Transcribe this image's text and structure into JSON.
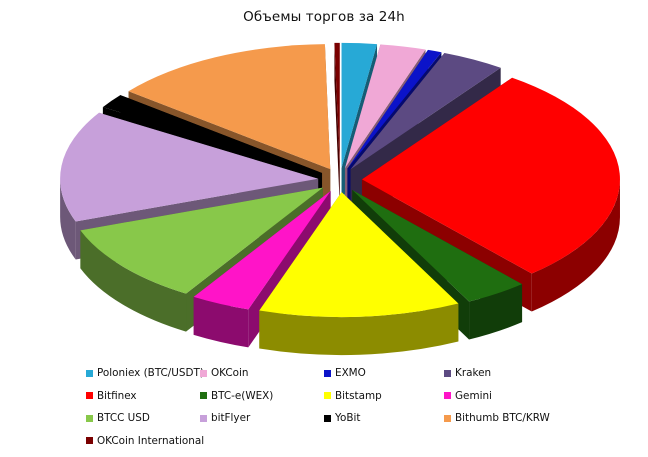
{
  "chart_data": {
    "type": "pie",
    "title": "Объемы торгов за 24h",
    "style": "exploded 3D pie",
    "categories": [
      "Poloniex (BTC/USDT)",
      "OKCoin",
      "EXMO",
      "Kraken",
      "Bitfinex",
      "BTC-e(WEX)",
      "Bitstamp",
      "Gemini",
      "BTCC USD",
      "bitFlyer",
      "YoBit",
      "Bithumb BTC/KRW",
      "OKCoin  International"
    ],
    "values": [
      2.0,
      2.6,
      0.8,
      3.6,
      26.1,
      3.6,
      11.5,
      3.4,
      9.6,
      13.1,
      1.7,
      12.7,
      0.3
    ],
    "colors": [
      "#27a9d6",
      "#f0a8d6",
      "#0b13c9",
      "#5c4a82",
      "#ff0000",
      "#1f6e10",
      "#ffff00",
      "#ff14c8",
      "#88c84a",
      "#c7a0da",
      "#000000",
      "#f59a4c",
      "#7a0000"
    ],
    "legend_position": "bottom"
  }
}
